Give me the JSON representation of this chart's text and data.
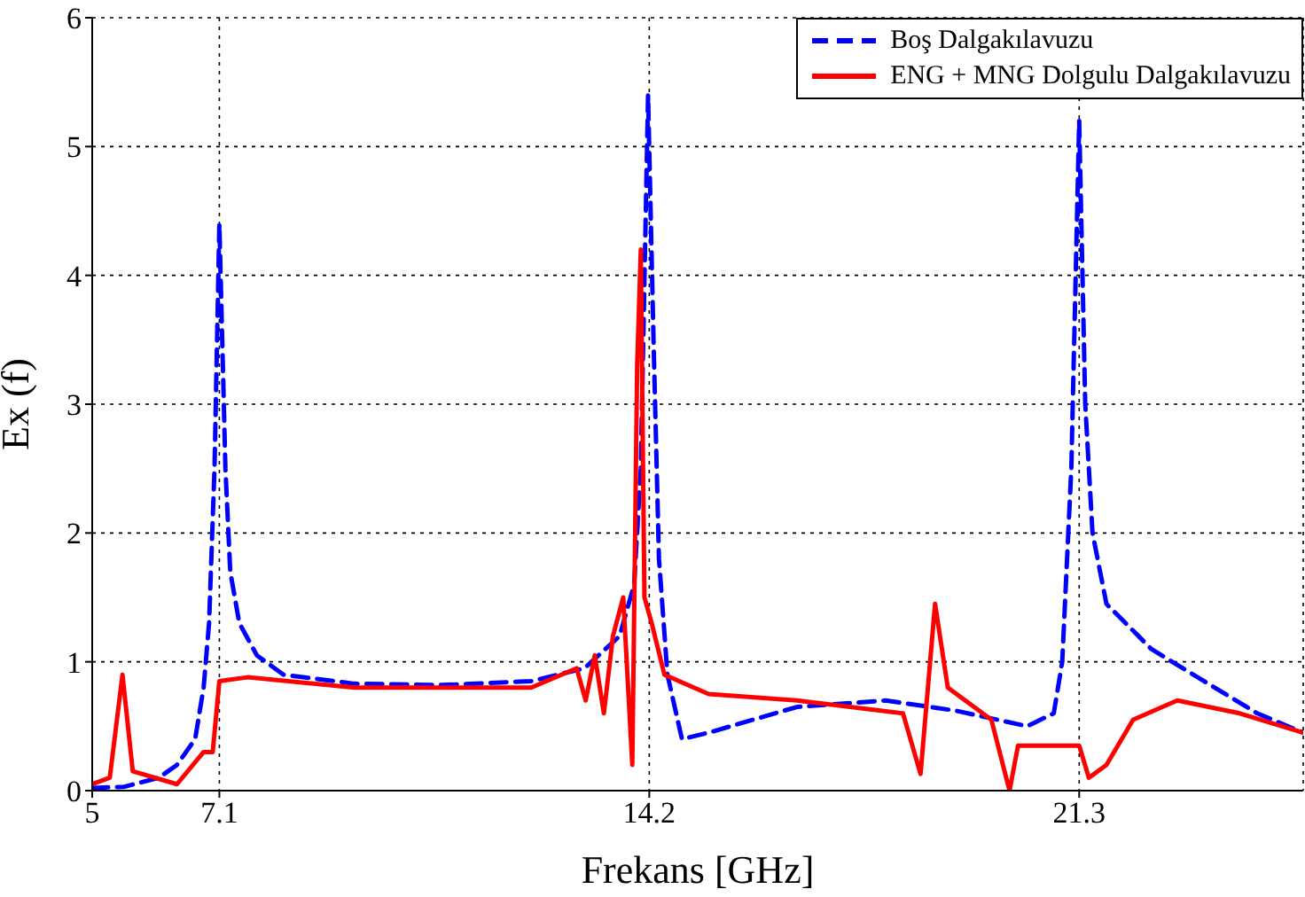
{
  "chart_data": {
    "type": "line",
    "xlabel": "Frekans [GHz]",
    "ylabel": "Ex (f)",
    "xlim": [
      5,
      25
    ],
    "xticks": [
      5,
      7.1,
      14.2,
      21.3
    ],
    "ylim": [
      0,
      6
    ],
    "yticks": [
      0,
      1,
      2,
      3,
      4,
      5,
      6
    ],
    "grid": true,
    "legend": "top right",
    "marker": "none",
    "series": [
      {
        "name": "Boş Dalgakılavuzu",
        "color": "#0000ff",
        "line_style": "dashed",
        "x": [
          5,
          5.53,
          6.1,
          6.4,
          6.7,
          6.84,
          6.93,
          7.02,
          7.1,
          7.2,
          7.28,
          7.43,
          7.72,
          8.16,
          9.33,
          10.79,
          12.25,
          13.13,
          13.71,
          13.95,
          14.06,
          14.18,
          14.27,
          14.36,
          14.5,
          14.74,
          15.18,
          16.64,
          18.1,
          19.27,
          20.44,
          20.88,
          21.02,
          21.17,
          21.3,
          21.4,
          21.52,
          21.75,
          22.49,
          23.36,
          24.24,
          25
        ],
        "values": [
          0.02,
          0.03,
          0.1,
          0.2,
          0.4,
          0.8,
          1.3,
          2.5,
          4.4,
          2.5,
          1.7,
          1.3,
          1.05,
          0.9,
          0.83,
          0.82,
          0.85,
          0.95,
          1.2,
          1.6,
          2.5,
          5.4,
          3.5,
          1.8,
          0.9,
          0.4,
          0.45,
          0.65,
          0.7,
          0.62,
          0.5,
          0.6,
          1.0,
          2.5,
          5.2,
          3.0,
          2.0,
          1.45,
          1.1,
          0.85,
          0.6,
          0.45
        ]
      },
      {
        "name": "ENG + MNG Dolgulu Dalgakılavuzu",
        "color": "#ff0000",
        "line_style": "solid",
        "x": [
          5,
          5.29,
          5.5,
          5.67,
          6.4,
          6.84,
          6.99,
          7.1,
          7.57,
          9.33,
          12.25,
          13.0,
          13.15,
          13.3,
          13.45,
          13.6,
          13.77,
          13.92,
          14.0,
          14.06,
          14.12,
          14.24,
          14.45,
          15.18,
          16.64,
          18.39,
          18.68,
          18.92,
          19.13,
          19.85,
          20.15,
          20.29,
          21.02,
          21.3,
          21.46,
          21.75,
          22.19,
          22.92,
          23.95,
          25
        ],
        "values": [
          0.05,
          0.1,
          0.9,
          0.15,
          0.05,
          0.3,
          0.3,
          0.85,
          0.88,
          0.8,
          0.8,
          0.95,
          0.7,
          1.05,
          0.6,
          1.2,
          1.5,
          0.2,
          3.3,
          4.2,
          1.5,
          1.3,
          0.9,
          0.75,
          0.7,
          0.6,
          0.13,
          1.45,
          0.8,
          0.55,
          0.0,
          0.35,
          0.35,
          0.35,
          0.1,
          0.2,
          0.55,
          0.7,
          0.6,
          0.45
        ]
      }
    ]
  }
}
